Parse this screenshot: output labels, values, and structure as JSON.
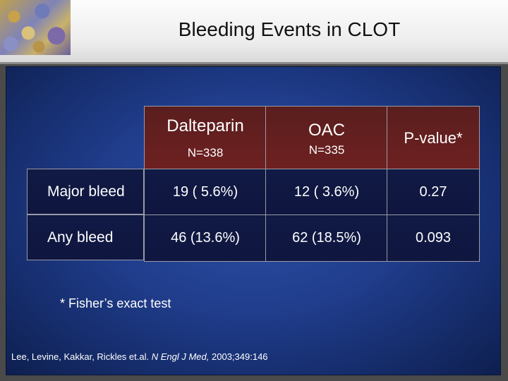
{
  "title": "Bleeding Events in CLOT",
  "table": {
    "columns": [
      {
        "name": "Dalteparin",
        "n": "N=338"
      },
      {
        "name": "OAC",
        "n": "N=335"
      },
      {
        "name": "P-value*",
        "n": ""
      }
    ],
    "rows": [
      {
        "label": "Major bleed",
        "cells": [
          "19 ( 5.6%)",
          "12 ( 3.6%)",
          "0.27"
        ]
      },
      {
        "label": "Any bleed",
        "cells": [
          "46 (13.6%)",
          "62 (18.5%)",
          "0.093"
        ]
      }
    ]
  },
  "footnote": "* Fisher’s exact test",
  "citation": {
    "authors": "Lee, Levine, Kakkar, Rickles et.al.",
    "journal": "N Engl J Med,",
    "details": "2003;349:146"
  },
  "colors": {
    "header_cell": "#6a1f1f",
    "row_cell": "#101a44",
    "background": "#203d8c"
  }
}
